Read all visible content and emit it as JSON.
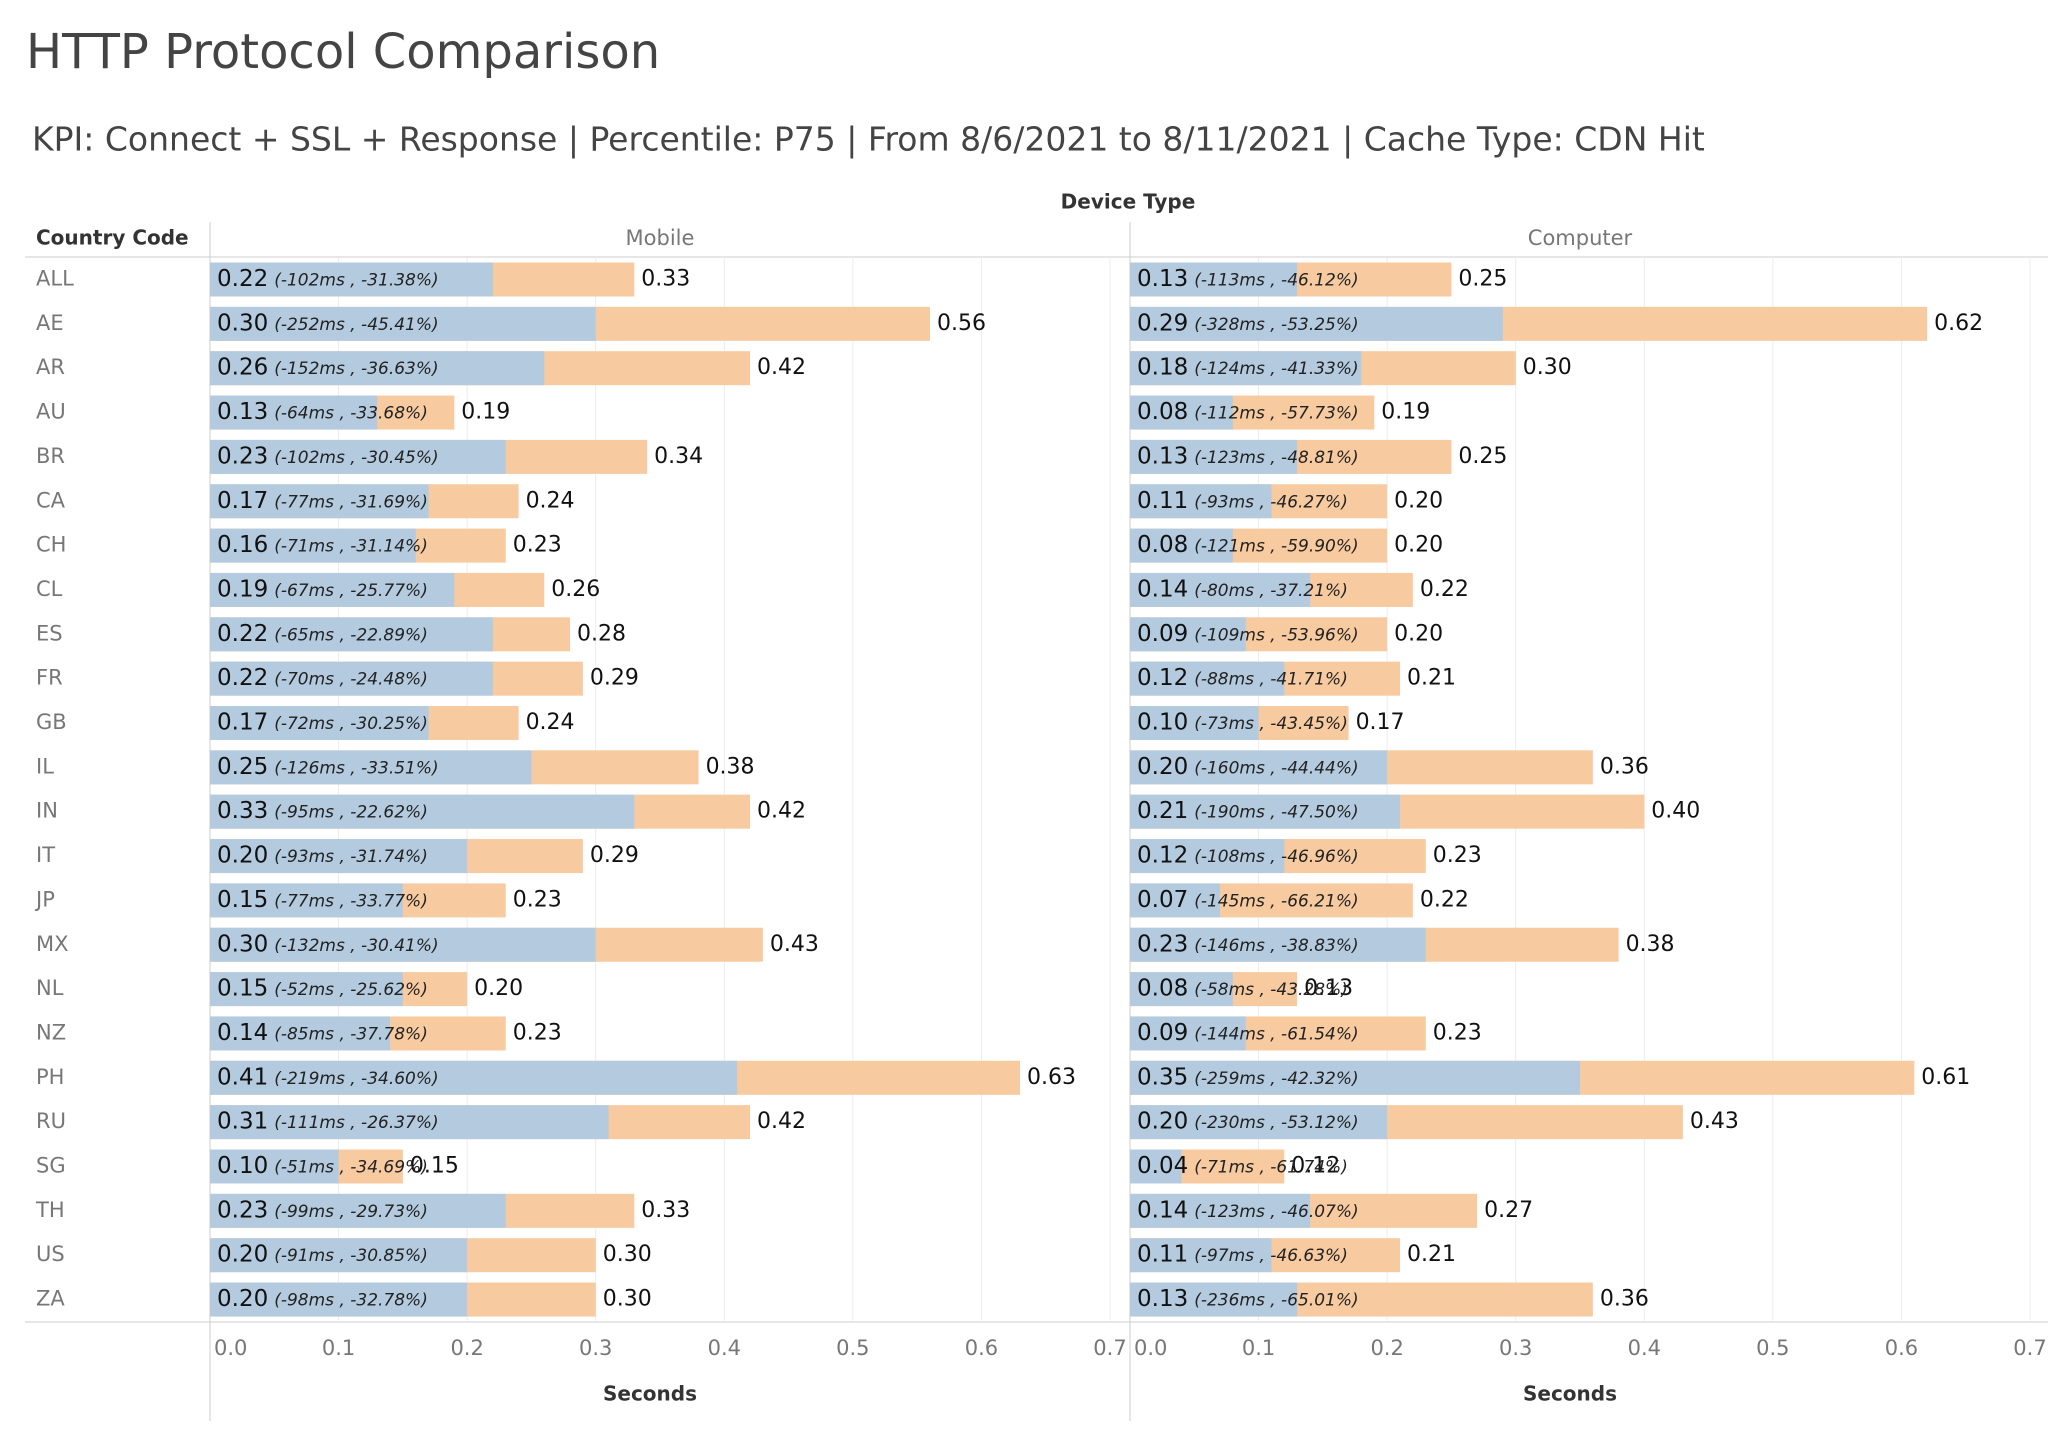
{
  "chart_data": {
    "type": "bar",
    "title": "HTTP Protocol Comparison",
    "subtitle": "KPI: Connect + SSL + Response | Percentile: P75  | From 8/6/2021 to 8/11/2021  | Cache Type: CDN Hit",
    "column_header": "Device Type",
    "row_header": "Country Code",
    "categories": [
      "ALL",
      "AE",
      "AR",
      "AU",
      "BR",
      "CA",
      "CH",
      "CL",
      "ES",
      "FR",
      "GB",
      "IL",
      "IN",
      "IT",
      "JP",
      "MX",
      "NL",
      "NZ",
      "PH",
      "RU",
      "SG",
      "TH",
      "US",
      "ZA"
    ],
    "xlim": [
      0,
      0.7
    ],
    "xticks": [
      {
        "value": 0,
        "label": "0.0"
      },
      0.1,
      0.2,
      0.3,
      0.4,
      0.5,
      0.6,
      0.7
    ],
    "xlabel": "Seconds",
    "grid": true,
    "panels": [
      {
        "name": "Mobile",
        "series": [
          {
            "color": "#f7caa0",
            "values": [
              0.33,
              0.56,
              0.42,
              0.19,
              0.34,
              0.24,
              0.23,
              0.26,
              0.28,
              0.29,
              0.24,
              0.38,
              0.42,
              0.29,
              0.23,
              0.43,
              0.2,
              0.23,
              0.63,
              0.42,
              0.15,
              0.33,
              0.3,
              0.3
            ],
            "value_labels": [
              "0.33",
              "0.56",
              "0.42",
              "0.19",
              "0.34",
              "0.24",
              "0.23",
              "0.26",
              "0.28",
              "0.29",
              "0.24",
              "0.38",
              "0.42",
              "0.29",
              "0.23",
              "0.43",
              "0.20",
              "0.23",
              "0.63",
              "0.42",
              "0.15",
              "0.33",
              "0.30",
              "0.30"
            ]
          },
          {
            "color": "#b4cbdf",
            "values": [
              0.22,
              0.3,
              0.26,
              0.13,
              0.23,
              0.17,
              0.16,
              0.19,
              0.22,
              0.22,
              0.17,
              0.25,
              0.33,
              0.2,
              0.15,
              0.3,
              0.15,
              0.14,
              0.41,
              0.31,
              0.1,
              0.23,
              0.2,
              0.2
            ],
            "value_labels": [
              "0.22",
              "0.30",
              "0.26",
              "0.13",
              "0.23",
              "0.17",
              "0.16",
              "0.19",
              "0.22",
              "0.22",
              "0.17",
              "0.25",
              "0.33",
              "0.20",
              "0.15",
              "0.30",
              "0.15",
              "0.14",
              "0.41",
              "0.31",
              "0.10",
              "0.23",
              "0.20",
              "0.20"
            ],
            "annotations": [
              "(-102ms , -31.38%)",
              "(-252ms , -45.41%)",
              "(-152ms , -36.63%)",
              "(-64ms , -33.68%)",
              "(-102ms , -30.45%)",
              "(-77ms , -31.69%)",
              "(-71ms , -31.14%)",
              "(-67ms , -25.77%)",
              "(-65ms , -22.89%)",
              "(-70ms , -24.48%)",
              "(-72ms , -30.25%)",
              "(-126ms , -33.51%)",
              "(-95ms , -22.62%)",
              "(-93ms , -31.74%)",
              "(-77ms , -33.77%)",
              "(-132ms , -30.41%)",
              "(-52ms , -25.62%)",
              "(-85ms , -37.78%)",
              "(-219ms , -34.60%)",
              "(-111ms , -26.37%)",
              "(-51ms , -34.69%)",
              "(-99ms , -29.73%)",
              "(-91ms , -30.85%)",
              "(-98ms , -32.78%)"
            ]
          }
        ]
      },
      {
        "name": "Computer",
        "series": [
          {
            "color": "#f7caa0",
            "values": [
              0.25,
              0.62,
              0.3,
              0.19,
              0.25,
              0.2,
              0.2,
              0.22,
              0.2,
              0.21,
              0.17,
              0.36,
              0.4,
              0.23,
              0.22,
              0.38,
              0.13,
              0.23,
              0.61,
              0.43,
              0.12,
              0.27,
              0.21,
              0.36
            ],
            "value_labels": [
              "0.25",
              "0.62",
              "0.30",
              "0.19",
              "0.25",
              "0.20",
              "0.20",
              "0.22",
              "0.20",
              "0.21",
              "0.17",
              "0.36",
              "0.40",
              "0.23",
              "0.22",
              "0.38",
              "0.13",
              "0.23",
              "0.61",
              "0.43",
              "0.12",
              "0.27",
              "0.21",
              "0.36"
            ]
          },
          {
            "color": "#b4cbdf",
            "values": [
              0.13,
              0.29,
              0.18,
              0.08,
              0.13,
              0.11,
              0.08,
              0.14,
              0.09,
              0.12,
              0.1,
              0.2,
              0.21,
              0.12,
              0.07,
              0.23,
              0.08,
              0.09,
              0.35,
              0.2,
              0.04,
              0.14,
              0.11,
              0.13
            ],
            "value_labels": [
              "0.13",
              "0.29",
              "0.18",
              "0.08",
              "0.13",
              "0.11",
              "0.08",
              "0.14",
              "0.09",
              "0.12",
              "0.10",
              "0.20",
              "0.21",
              "0.12",
              "0.07",
              "0.23",
              "0.08",
              "0.09",
              "0.35",
              "0.20",
              "0.04",
              "0.14",
              "0.11",
              "0.13"
            ],
            "annotations": [
              "(-113ms , -46.12%)",
              "(-328ms , -53.25%)",
              "(-124ms , -41.33%)",
              "(-112ms , -57.73%)",
              "(-123ms , -48.81%)",
              "(-93ms , -46.27%)",
              "(-121ms , -59.90%)",
              "(-80ms , -37.21%)",
              "(-109ms , -53.96%)",
              "(-88ms , -41.71%)",
              "(-73ms , -43.45%)",
              "(-160ms , -44.44%)",
              "(-190ms , -47.50%)",
              "(-108ms , -46.96%)",
              "(-145ms , -66.21%)",
              "(-146ms , -38.83%)",
              "(-58ms , -43.28%)",
              "(-144ms , -61.54%)",
              "(-259ms , -42.32%)",
              "(-230ms , -53.12%)",
              "(-71ms , -61.74%)",
              "(-123ms , -46.07%)",
              "(-97ms , -46.63%)",
              "(-236ms , -65.01%)"
            ]
          }
        ]
      }
    ]
  }
}
